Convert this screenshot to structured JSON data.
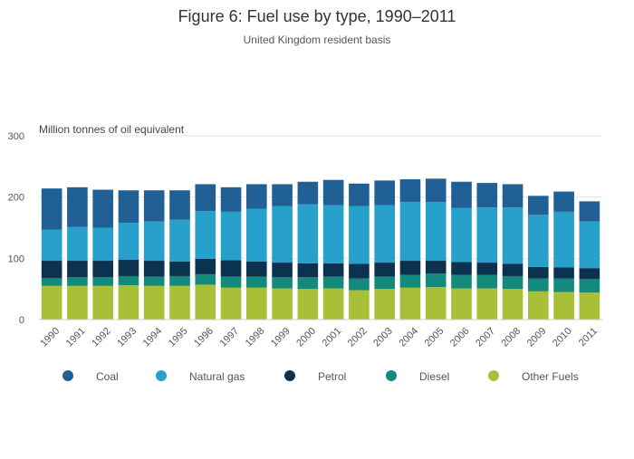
{
  "chart_data": {
    "type": "bar",
    "stacked": true,
    "title": "Figure 6: Fuel use by type, 1990–2011",
    "subtitle": "United Kingdom resident basis",
    "ylabel": "Million tonnes of oil equivalent",
    "xlabel": "",
    "ylim": [
      0,
      300
    ],
    "yticks": [
      0,
      100,
      200,
      300
    ],
    "grid": true,
    "legend_position": "bottom",
    "categories": [
      "1990",
      "1991",
      "1992",
      "1993",
      "1994",
      "1995",
      "1996",
      "1997",
      "1998",
      "1999",
      "2000",
      "2001",
      "2002",
      "2003",
      "2004",
      "2005",
      "2006",
      "2007",
      "2008",
      "2009",
      "2010",
      "2011"
    ],
    "series": [
      {
        "name": "Other Fuels",
        "color": "#a8c038",
        "values": [
          55,
          55,
          55,
          56,
          55,
          55,
          57,
          52,
          52,
          51,
          50,
          51,
          48,
          50,
          52,
          53,
          51,
          51,
          50,
          46,
          45,
          44
        ]
      },
      {
        "name": "Diesel",
        "color": "#138a7c",
        "values": [
          13,
          14,
          14,
          15,
          15,
          16,
          17,
          18,
          18,
          18,
          19,
          19,
          19,
          20,
          21,
          22,
          22,
          22,
          21,
          21,
          22,
          22
        ]
      },
      {
        "name": "Petrol",
        "color": "#0b3350",
        "values": [
          28,
          27,
          27,
          27,
          26,
          24,
          25,
          27,
          25,
          24,
          23,
          22,
          24,
          23,
          23,
          21,
          21,
          20,
          20,
          19,
          18,
          18
        ]
      },
      {
        "name": "Natural gas",
        "color": "#27a0cc",
        "values": [
          51,
          55,
          54,
          60,
          64,
          68,
          78,
          79,
          86,
          92,
          96,
          95,
          94,
          94,
          96,
          96,
          88,
          90,
          92,
          85,
          91,
          76
        ]
      },
      {
        "name": "Coal",
        "color": "#206095",
        "values": [
          67,
          65,
          62,
          53,
          51,
          48,
          44,
          40,
          40,
          36,
          37,
          41,
          37,
          40,
          37,
          38,
          43,
          40,
          38,
          31,
          33,
          33
        ]
      }
    ],
    "legend_order": [
      "Coal",
      "Natural gas",
      "Petrol",
      "Diesel",
      "Other Fuels"
    ]
  }
}
